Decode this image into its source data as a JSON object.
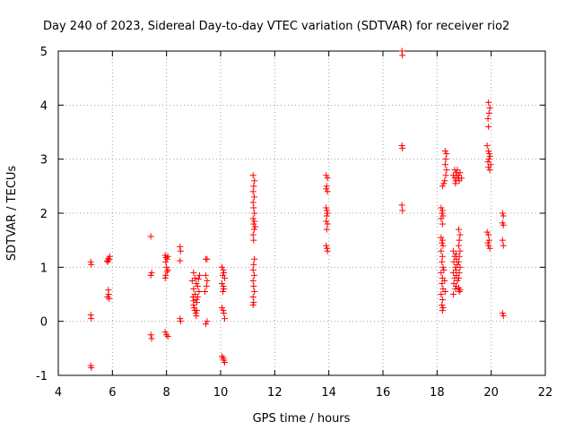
{
  "chart_data": {
    "type": "scatter",
    "title": "Day 240 of 2023, Sidereal Day-to-day VTEC variation (SDTVAR) for receiver rio2",
    "xlabel": "GPS time / hours",
    "ylabel": "SDTVAR / TECUs",
    "xlim": [
      4,
      22
    ],
    "ylim": [
      -1,
      5
    ],
    "xticks": [
      4,
      6,
      8,
      10,
      12,
      14,
      16,
      18,
      20,
      22
    ],
    "yticks": [
      -1,
      0,
      1,
      2,
      3,
      4,
      5
    ],
    "xtick_labels": [
      "4",
      "6",
      "8",
      "10",
      "12",
      "14",
      "16",
      "18",
      "20",
      "22"
    ],
    "ytick_labels": [
      "-1",
      "0",
      "1",
      "2",
      "3",
      "4",
      "5"
    ],
    "grid": true,
    "marker": "+",
    "color": "#ff0000",
    "points": [
      [
        5.2,
        1.1
      ],
      [
        5.22,
        1.05
      ],
      [
        5.2,
        0.12
      ],
      [
        5.22,
        0.05
      ],
      [
        5.2,
        -0.82
      ],
      [
        5.22,
        -0.86
      ],
      [
        5.8,
        1.12
      ],
      [
        5.85,
        1.16
      ],
      [
        5.9,
        1.2
      ],
      [
        5.83,
        1.1
      ],
      [
        5.88,
        1.14
      ],
      [
        5.85,
        0.58
      ],
      [
        5.82,
        0.45
      ],
      [
        5.88,
        0.42
      ],
      [
        5.86,
        0.5
      ],
      [
        7.42,
        1.57
      ],
      [
        7.45,
        0.9
      ],
      [
        7.42,
        0.85
      ],
      [
        7.42,
        -0.25
      ],
      [
        7.45,
        -0.32
      ],
      [
        7.95,
        1.22
      ],
      [
        7.98,
        1.18
      ],
      [
        8.02,
        1.15
      ],
      [
        8.05,
        1.2
      ],
      [
        7.97,
        1.1
      ],
      [
        8.0,
        1.0
      ],
      [
        8.02,
        0.92
      ],
      [
        7.97,
        0.85
      ],
      [
        7.95,
        0.8
      ],
      [
        8.05,
        0.95
      ],
      [
        7.95,
        -0.2
      ],
      [
        8.0,
        -0.25
      ],
      [
        8.05,
        -0.28
      ],
      [
        8.5,
        1.38
      ],
      [
        8.52,
        1.3
      ],
      [
        8.5,
        1.12
      ],
      [
        8.5,
        0.05
      ],
      [
        8.52,
        0.0
      ],
      [
        9.0,
        0.9
      ],
      [
        9.05,
        0.8
      ],
      [
        9.1,
        0.7
      ],
      [
        9.0,
        0.6
      ],
      [
        9.05,
        0.5
      ],
      [
        9.1,
        0.4
      ],
      [
        9.0,
        0.3
      ],
      [
        9.05,
        0.2
      ],
      [
        9.1,
        0.1
      ],
      [
        8.95,
        0.75
      ],
      [
        9.15,
        0.65
      ],
      [
        8.98,
        0.45
      ],
      [
        9.12,
        0.35
      ],
      [
        9.02,
        0.25
      ],
      [
        9.08,
        0.15
      ],
      [
        9.18,
        0.78
      ],
      [
        9.2,
        0.55
      ],
      [
        9.22,
        0.85
      ],
      [
        9.15,
        0.45
      ],
      [
        9.12,
        0.2
      ],
      [
        9.0,
        0.38
      ],
      [
        9.45,
        1.15
      ],
      [
        9.5,
        1.15
      ],
      [
        9.45,
        0.85
      ],
      [
        9.5,
        0.75
      ],
      [
        9.48,
        0.65
      ],
      [
        9.42,
        0.55
      ],
      [
        9.5,
        0.0
      ],
      [
        9.45,
        -0.05
      ],
      [
        10.05,
        1.0
      ],
      [
        10.1,
        0.95
      ],
      [
        10.12,
        0.9
      ],
      [
        10.08,
        0.85
      ],
      [
        10.15,
        0.8
      ],
      [
        10.05,
        0.7
      ],
      [
        10.1,
        0.65
      ],
      [
        10.12,
        0.6
      ],
      [
        10.08,
        0.55
      ],
      [
        10.05,
        0.25
      ],
      [
        10.1,
        0.2
      ],
      [
        10.12,
        0.15
      ],
      [
        10.15,
        0.05
      ],
      [
        10.05,
        -0.65
      ],
      [
        10.1,
        -0.68
      ],
      [
        10.12,
        -0.72
      ],
      [
        10.15,
        -0.76
      ],
      [
        11.2,
        2.7
      ],
      [
        11.25,
        2.6
      ],
      [
        11.22,
        2.5
      ],
      [
        11.2,
        2.4
      ],
      [
        11.24,
        2.3
      ],
      [
        11.2,
        2.2
      ],
      [
        11.22,
        2.1
      ],
      [
        11.25,
        2.0
      ],
      [
        11.2,
        1.9
      ],
      [
        11.22,
        1.8
      ],
      [
        11.24,
        1.7
      ],
      [
        11.2,
        1.6
      ],
      [
        11.22,
        1.5
      ],
      [
        11.25,
        1.15
      ],
      [
        11.22,
        1.05
      ],
      [
        11.2,
        0.95
      ],
      [
        11.24,
        0.85
      ],
      [
        11.2,
        0.75
      ],
      [
        11.22,
        0.65
      ],
      [
        11.25,
        0.55
      ],
      [
        11.2,
        0.45
      ],
      [
        11.22,
        0.35
      ],
      [
        11.2,
        0.3
      ],
      [
        11.25,
        1.85
      ],
      [
        11.28,
        1.75
      ],
      [
        13.9,
        2.7
      ],
      [
        13.95,
        2.65
      ],
      [
        13.92,
        2.5
      ],
      [
        13.9,
        2.45
      ],
      [
        13.95,
        2.4
      ],
      [
        13.9,
        2.1
      ],
      [
        13.93,
        2.05
      ],
      [
        13.95,
        2.0
      ],
      [
        13.92,
        1.95
      ],
      [
        13.9,
        1.85
      ],
      [
        13.95,
        1.8
      ],
      [
        13.92,
        1.7
      ],
      [
        13.9,
        1.4
      ],
      [
        13.93,
        1.35
      ],
      [
        13.95,
        1.3
      ],
      [
        16.7,
        5.0
      ],
      [
        16.72,
        4.92
      ],
      [
        16.7,
        3.25
      ],
      [
        16.72,
        3.2
      ],
      [
        16.7,
        2.15
      ],
      [
        16.72,
        2.05
      ],
      [
        18.15,
        2.1
      ],
      [
        18.2,
        2.05
      ],
      [
        18.18,
        2.0
      ],
      [
        18.22,
        1.95
      ],
      [
        18.15,
        1.9
      ],
      [
        18.2,
        1.8
      ],
      [
        18.15,
        1.55
      ],
      [
        18.2,
        1.5
      ],
      [
        18.18,
        1.45
      ],
      [
        18.22,
        1.4
      ],
      [
        18.15,
        1.3
      ],
      [
        18.2,
        1.2
      ],
      [
        18.18,
        1.1
      ],
      [
        18.22,
        1.0
      ],
      [
        18.15,
        0.9
      ],
      [
        18.2,
        0.8
      ],
      [
        18.18,
        0.7
      ],
      [
        18.22,
        0.6
      ],
      [
        18.15,
        0.5
      ],
      [
        18.2,
        0.4
      ],
      [
        18.18,
        0.3
      ],
      [
        18.22,
        0.25
      ],
      [
        18.2,
        0.2
      ],
      [
        18.25,
        0.95
      ],
      [
        18.28,
        0.75
      ],
      [
        18.3,
        0.55
      ],
      [
        18.25,
        2.55
      ],
      [
        18.2,
        2.5
      ],
      [
        18.3,
        3.15
      ],
      [
        18.35,
        3.1
      ],
      [
        18.32,
        3.0
      ],
      [
        18.3,
        2.9
      ],
      [
        18.35,
        2.8
      ],
      [
        18.32,
        2.7
      ],
      [
        18.28,
        2.6
      ],
      [
        18.65,
        2.8
      ],
      [
        18.7,
        2.75
      ],
      [
        18.72,
        2.7
      ],
      [
        18.65,
        2.65
      ],
      [
        18.7,
        2.6
      ],
      [
        18.75,
        2.8
      ],
      [
        18.8,
        2.7
      ],
      [
        18.85,
        2.75
      ],
      [
        18.78,
        2.65
      ],
      [
        18.82,
        2.6
      ],
      [
        18.68,
        2.55
      ],
      [
        18.9,
        2.65
      ],
      [
        18.6,
        2.7
      ],
      [
        18.6,
        1.3
      ],
      [
        18.65,
        1.2
      ],
      [
        18.62,
        1.1
      ],
      [
        18.68,
        1.0
      ],
      [
        18.6,
        0.9
      ],
      [
        18.65,
        0.8
      ],
      [
        18.62,
        0.7
      ],
      [
        18.68,
        0.6
      ],
      [
        18.6,
        0.5
      ],
      [
        18.7,
        1.25
      ],
      [
        18.72,
        1.15
      ],
      [
        18.75,
        1.05
      ],
      [
        18.7,
        0.95
      ],
      [
        18.72,
        0.85
      ],
      [
        18.75,
        0.75
      ],
      [
        18.7,
        0.65
      ],
      [
        18.8,
        0.62
      ],
      [
        18.85,
        0.58
      ],
      [
        18.82,
        0.55
      ],
      [
        18.8,
        1.7
      ],
      [
        18.85,
        1.6
      ],
      [
        18.82,
        1.5
      ],
      [
        18.8,
        1.4
      ],
      [
        18.85,
        1.3
      ],
      [
        18.82,
        1.2
      ],
      [
        18.8,
        1.1
      ],
      [
        18.85,
        1.0
      ],
      [
        18.82,
        0.9
      ],
      [
        18.8,
        0.8
      ],
      [
        19.9,
        4.05
      ],
      [
        19.95,
        3.95
      ],
      [
        19.92,
        3.85
      ],
      [
        19.88,
        3.75
      ],
      [
        19.9,
        3.6
      ],
      [
        19.85,
        3.25
      ],
      [
        19.9,
        3.15
      ],
      [
        19.95,
        3.05
      ],
      [
        19.92,
        3.0
      ],
      [
        19.88,
        2.95
      ],
      [
        19.9,
        2.85
      ],
      [
        19.95,
        2.8
      ],
      [
        19.93,
        3.1
      ],
      [
        19.98,
        2.9
      ],
      [
        19.85,
        1.65
      ],
      [
        19.9,
        1.6
      ],
      [
        19.92,
        1.5
      ],
      [
        19.88,
        1.45
      ],
      [
        19.9,
        1.4
      ],
      [
        19.95,
        1.35
      ],
      [
        20.42,
        2.0
      ],
      [
        20.45,
        1.95
      ],
      [
        20.42,
        1.82
      ],
      [
        20.45,
        1.78
      ],
      [
        20.42,
        1.5
      ],
      [
        20.45,
        1.4
      ],
      [
        20.42,
        0.15
      ],
      [
        20.45,
        0.1
      ]
    ]
  }
}
